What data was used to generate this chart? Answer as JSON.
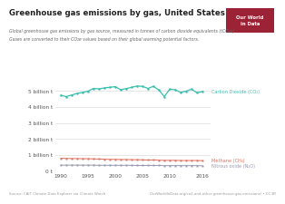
{
  "title": "Greenhouse gas emissions by gas, United States",
  "subtitle_line1": "Global greenhouse gas emissions by gas source, measured in tonnes of carbon dioxide equivalents (tCO₂e).",
  "subtitle_line2": "Gases are converted to their CO₂e values based on their global warming potential factors.",
  "source_left": "Source: CAIT Climate Data Explorer via Climate Watch",
  "source_right": "OurWorldInData.org/co2-and-other-greenhouse-gas-emissions/ • CC BY",
  "years": [
    1990,
    1991,
    1992,
    1993,
    1994,
    1995,
    1996,
    1997,
    1998,
    1999,
    2000,
    2001,
    2002,
    2003,
    2004,
    2005,
    2006,
    2007,
    2008,
    2009,
    2010,
    2011,
    2012,
    2013,
    2014,
    2015,
    2016
  ],
  "co2": [
    4.72,
    4.64,
    4.74,
    4.84,
    4.9,
    4.98,
    5.15,
    5.12,
    5.18,
    5.22,
    5.26,
    5.07,
    5.14,
    5.22,
    5.3,
    5.28,
    5.15,
    5.28,
    5.05,
    4.64,
    5.1,
    5.07,
    4.9,
    4.98,
    5.1,
    4.88,
    4.95
  ],
  "methane": [
    0.79,
    0.78,
    0.77,
    0.77,
    0.76,
    0.76,
    0.75,
    0.74,
    0.73,
    0.72,
    0.72,
    0.71,
    0.71,
    0.7,
    0.7,
    0.69,
    0.68,
    0.68,
    0.67,
    0.66,
    0.66,
    0.66,
    0.65,
    0.65,
    0.65,
    0.65,
    0.64
  ],
  "nitrous_oxide": [
    0.36,
    0.36,
    0.36,
    0.36,
    0.36,
    0.36,
    0.36,
    0.35,
    0.35,
    0.35,
    0.35,
    0.35,
    0.35,
    0.35,
    0.34,
    0.34,
    0.34,
    0.34,
    0.34,
    0.33,
    0.33,
    0.33,
    0.33,
    0.33,
    0.33,
    0.33,
    0.32
  ],
  "co2_color": "#3cbfad",
  "methane_color": "#df7060",
  "nitrous_color": "#9898b0",
  "co2_label": "Carbon Dioxide (CO₂)",
  "methane_label": "Methane (CH₄)",
  "nitrous_label": "Nitrous oxide (N₂O)",
  "bg_color": "#ffffff",
  "plot_bg": "#ffffff",
  "ylim": [
    0,
    6.0
  ],
  "yticks": [
    0,
    1,
    2,
    3,
    4,
    5
  ],
  "ytick_labels": [
    "0 t",
    "1 billion t",
    "2 billion t",
    "3 billion t",
    "4 billion t",
    "5 billion t"
  ],
  "xticks": [
    1990,
    1995,
    2000,
    2005,
    2010,
    2016
  ],
  "owid_box_color": "#9b2335",
  "owid_text": "Our World\nin Data"
}
